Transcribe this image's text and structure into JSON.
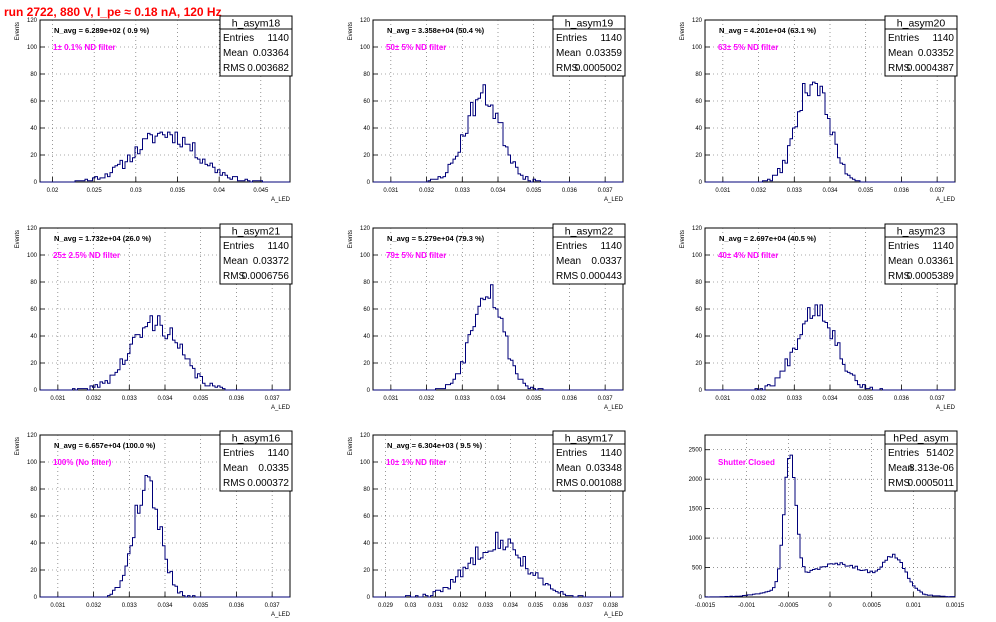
{
  "page_title": "run 2722,   880 V, I_pe ≈ 0.18 nA, 120 Hz",
  "colors": {
    "title": "#ff0000",
    "annotation": "#ff00ff",
    "histogram": "#00007a",
    "grid": "#555555"
  },
  "stats_labels": {
    "entries": "Entries",
    "mean": "Mean",
    "rms": "RMS"
  },
  "chart_data": [
    {
      "type": "bar",
      "name": "h_asym18",
      "navg": "N_avg = 6.289e+02 ( 0.9 %)",
      "note": "1± 0.1% ND filter",
      "entries": "1140",
      "mean": "0.03364",
      "rms": "0.003682",
      "ylabel": "Events",
      "xlabel": "A_LED",
      "xlim": [
        0.0185,
        0.0485
      ],
      "ylim": [
        0,
        120
      ],
      "xticks": [
        0.02,
        0.025,
        0.03,
        0.035,
        0.04,
        0.045
      ],
      "xtick_labels": [
        "0.02",
        "0.025",
        "0.03",
        "0.035",
        "0.04",
        "0.045"
      ],
      "yticks": [
        0,
        20,
        40,
        60,
        80,
        100,
        120
      ],
      "peaks": [
        {
          "mu": 0.0336,
          "sigma": 0.0037,
          "height": 36
        }
      ],
      "seed": 11
    },
    {
      "type": "bar",
      "name": "h_asym19",
      "navg": "N_avg = 3.358e+04 (50.4 %)",
      "note": "50± 5% ND filter",
      "entries": "1140",
      "mean": "0.03359",
      "rms": "0.0005002",
      "ylabel": "Events",
      "xlabel": "A_LED",
      "xlim": [
        0.0305,
        0.0375
      ],
      "ylim": [
        0,
        120
      ],
      "xticks": [
        0.031,
        0.032,
        0.033,
        0.034,
        0.035,
        0.036,
        0.037
      ],
      "xtick_labels": [
        "0.031",
        "0.032",
        "0.033",
        "0.034",
        "0.035",
        "0.036",
        "0.037"
      ],
      "yticks": [
        0,
        20,
        40,
        60,
        80,
        100,
        120
      ],
      "peaks": [
        {
          "mu": 0.03359,
          "sigma": 0.0005,
          "height": 64
        }
      ],
      "seed": 23
    },
    {
      "type": "bar",
      "name": "h_asym20",
      "navg": "N_avg = 4.201e+04 (63.1 %)",
      "note": "63± 5% ND filter",
      "entries": "1140",
      "mean": "0.03352",
      "rms": "0.0004387",
      "ylabel": "Events",
      "xlabel": "A_LED",
      "xlim": [
        0.0305,
        0.0375
      ],
      "ylim": [
        0,
        120
      ],
      "xticks": [
        0.031,
        0.032,
        0.033,
        0.034,
        0.035,
        0.036,
        0.037
      ],
      "xtick_labels": [
        "0.031",
        "0.032",
        "0.033",
        "0.034",
        "0.035",
        "0.036",
        "0.037"
      ],
      "yticks": [
        0,
        20,
        40,
        60,
        80,
        100,
        120
      ],
      "peaks": [
        {
          "mu": 0.03352,
          "sigma": 0.00044,
          "height": 76
        }
      ],
      "seed": 37
    },
    {
      "type": "bar",
      "name": "h_asym21",
      "navg": "N_avg = 1.732e+04 (26.0 %)",
      "note": "25± 2.5% ND filter",
      "entries": "1140",
      "mean": "0.03372",
      "rms": "0.0006756",
      "ylabel": "Events",
      "xlabel": "A_LED",
      "xlim": [
        0.0305,
        0.0375
      ],
      "ylim": [
        0,
        120
      ],
      "xticks": [
        0.031,
        0.032,
        0.033,
        0.034,
        0.035,
        0.036,
        0.037
      ],
      "xtick_labels": [
        "0.031",
        "0.032",
        "0.033",
        "0.034",
        "0.035",
        "0.036",
        "0.037"
      ],
      "yticks": [
        0,
        20,
        40,
        60,
        80,
        100,
        120
      ],
      "peaks": [
        {
          "mu": 0.03372,
          "sigma": 0.00068,
          "height": 50
        }
      ],
      "seed": 41
    },
    {
      "type": "bar",
      "name": "h_asym22",
      "navg": "N_avg = 5.279e+04 (79.3 %)",
      "note": "79± 5% ND filter",
      "entries": "1140",
      "mean": "0.0337",
      "rms": "0.000443",
      "ylabel": "Events",
      "xlabel": "A_LED",
      "xlim": [
        0.0305,
        0.0375
      ],
      "ylim": [
        0,
        120
      ],
      "xticks": [
        0.031,
        0.032,
        0.033,
        0.034,
        0.035,
        0.036,
        0.037
      ],
      "xtick_labels": [
        "0.031",
        "0.032",
        "0.033",
        "0.034",
        "0.035",
        "0.036",
        "0.037"
      ],
      "yticks": [
        0,
        20,
        40,
        60,
        80,
        100,
        120
      ],
      "peaks": [
        {
          "mu": 0.0337,
          "sigma": 0.00044,
          "height": 76
        }
      ],
      "seed": 53
    },
    {
      "type": "bar",
      "name": "h_asym23",
      "navg": "N_avg = 2.697e+04 (40.5 %)",
      "note": "40± 4% ND filter",
      "entries": "1140",
      "mean": "0.03361",
      "rms": "0.0005389",
      "ylabel": "Events",
      "xlabel": "A_LED",
      "xlim": [
        0.0305,
        0.0375
      ],
      "ylim": [
        0,
        120
      ],
      "xticks": [
        0.031,
        0.032,
        0.033,
        0.034,
        0.035,
        0.036,
        0.037
      ],
      "xtick_labels": [
        "0.031",
        "0.032",
        "0.033",
        "0.034",
        "0.035",
        "0.036",
        "0.037"
      ],
      "yticks": [
        0,
        20,
        40,
        60,
        80,
        100,
        120
      ],
      "peaks": [
        {
          "mu": 0.03361,
          "sigma": 0.00054,
          "height": 62
        }
      ],
      "seed": 67
    },
    {
      "type": "bar",
      "name": "h_asym16",
      "navg": "N_avg = 6.657e+04 (100.0 %)",
      "note": "100% (No filter)",
      "entries": "1140",
      "mean": "0.0335",
      "rms": "0.000372",
      "ylabel": "Events",
      "xlabel": "A_LED",
      "xlim": [
        0.0305,
        0.0375
      ],
      "ylim": [
        0,
        120
      ],
      "xticks": [
        0.031,
        0.032,
        0.033,
        0.034,
        0.035,
        0.036,
        0.037
      ],
      "xtick_labels": [
        "0.031",
        "0.032",
        "0.033",
        "0.034",
        "0.035",
        "0.036",
        "0.037"
      ],
      "yticks": [
        0,
        20,
        40,
        60,
        80,
        100,
        120
      ],
      "peaks": [
        {
          "mu": 0.0335,
          "sigma": 0.00037,
          "height": 84
        }
      ],
      "seed": 79
    },
    {
      "type": "bar",
      "name": "h_asym17",
      "navg": "N_avg = 6.304e+03 ( 9.5 %)",
      "note": "10± 1% ND filter",
      "entries": "1140",
      "mean": "0.03348",
      "rms": "0.001088",
      "ylabel": "Events",
      "xlabel": "A_LED",
      "xlim": [
        0.0285,
        0.0385
      ],
      "ylim": [
        0,
        120
      ],
      "xticks": [
        0.029,
        0.03,
        0.031,
        0.032,
        0.033,
        0.034,
        0.035,
        0.036,
        0.037,
        0.038
      ],
      "xtick_labels": [
        "0.029",
        "0.03",
        "0.031",
        "0.032",
        "0.033",
        "0.034",
        "0.035",
        "0.036",
        "0.037",
        "0.038"
      ],
      "yticks": [
        0,
        20,
        40,
        60,
        80,
        100,
        120
      ],
      "peaks": [
        {
          "mu": 0.03348,
          "sigma": 0.00109,
          "height": 42
        }
      ],
      "seed": 83
    },
    {
      "type": "bar",
      "name": "hPed_asym",
      "navg": "",
      "note": "Shutter Closed",
      "entries": "51402",
      "mean": "8.313e-06",
      "rms": "0.0005011",
      "ylabel": "",
      "xlabel": "",
      "xlim": [
        -0.0015,
        0.0015
      ],
      "ylim": [
        0,
        2750
      ],
      "xticks": [
        -0.0015,
        -0.001,
        -0.0005,
        0,
        0.0005,
        0.001,
        0.0015
      ],
      "xtick_labels": [
        "-0.0015",
        "-0.001",
        "-0.0005",
        "0",
        "0.0005",
        "0.001",
        "0.0015"
      ],
      "yticks": [
        0,
        500,
        1000,
        1500,
        2000,
        2500
      ],
      "peaks": [
        {
          "mu": -0.00048,
          "sigma": 7e-05,
          "height": 2200
        },
        {
          "mu": 0.00078,
          "sigma": 0.00013,
          "height": 520
        },
        {
          "mu": 0.0001,
          "sigma": 0.00045,
          "height": 560
        }
      ],
      "seed": 97
    }
  ]
}
